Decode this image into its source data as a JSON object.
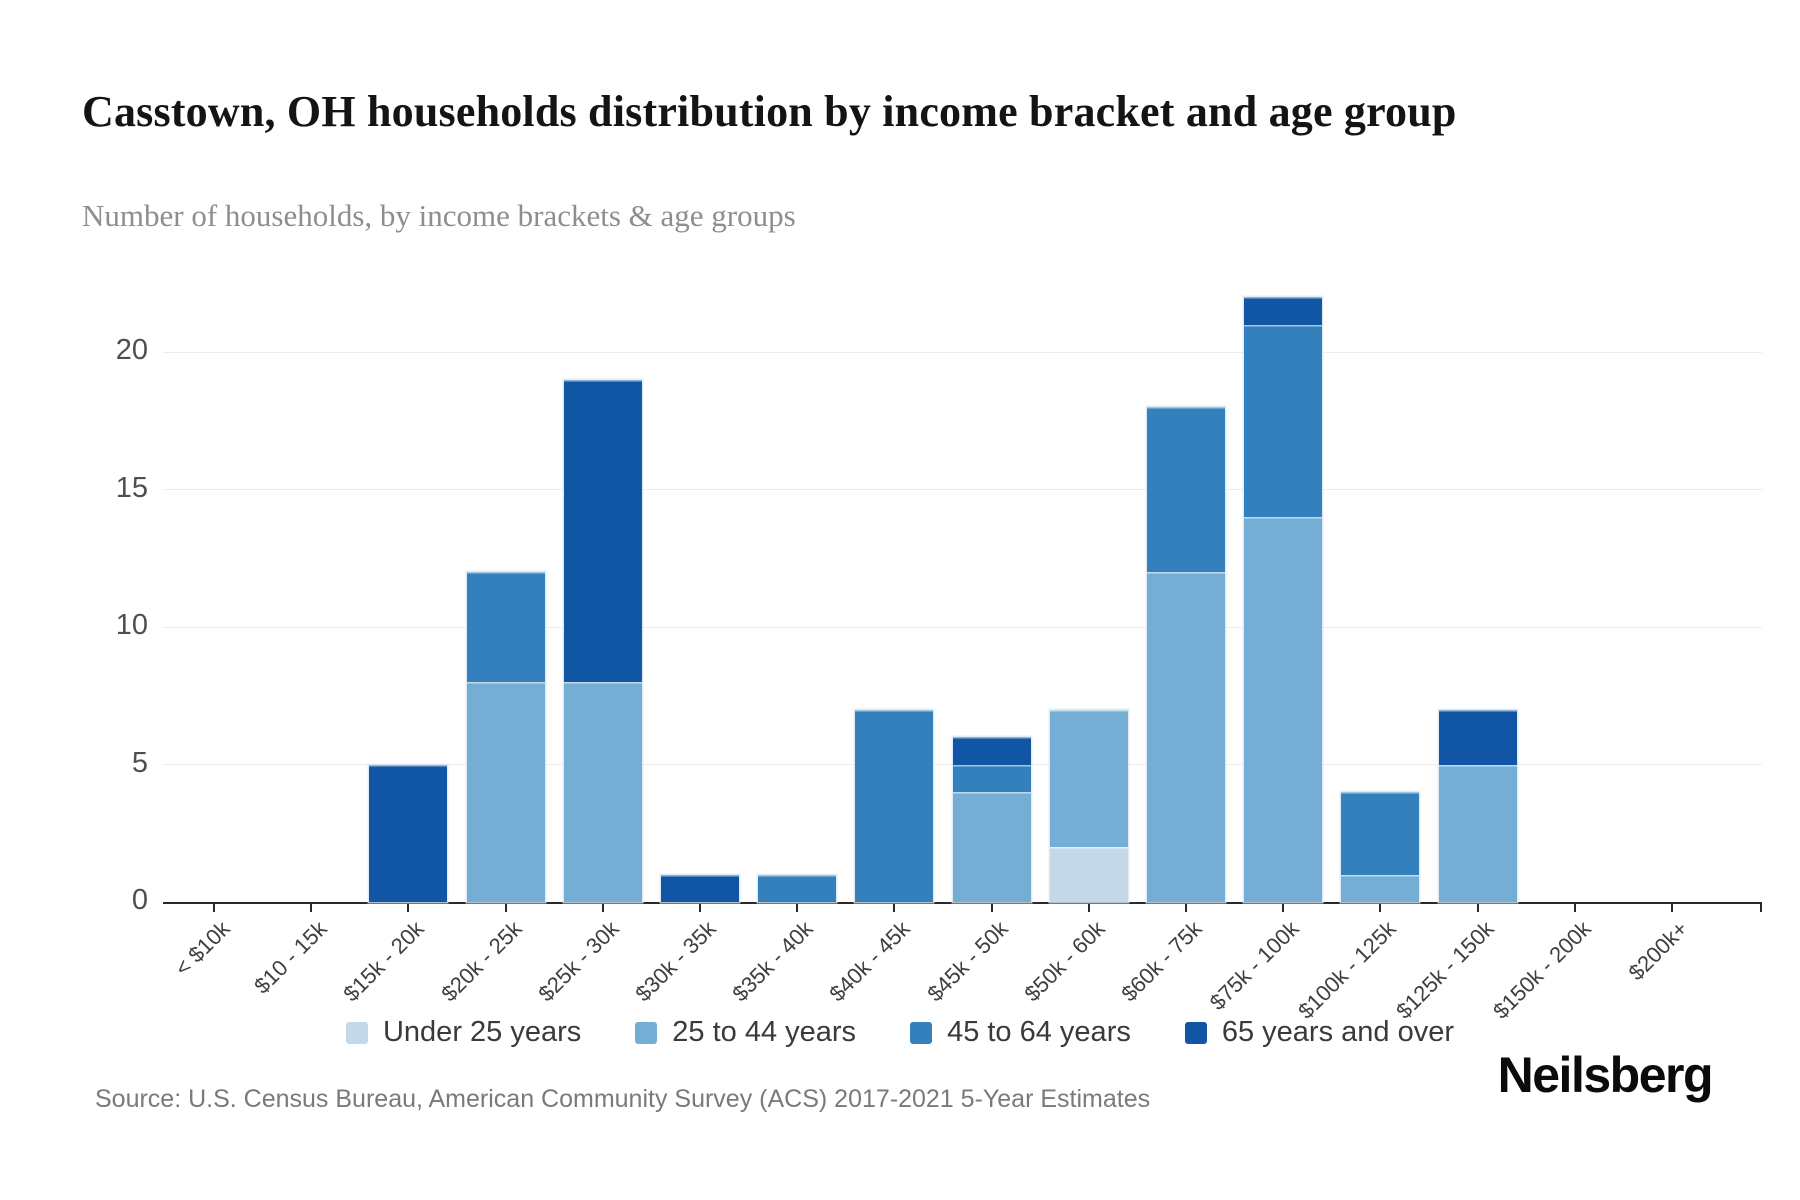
{
  "title": "Casstown, OH households distribution by income bracket and age group",
  "subtitle": "Number of households, by income brackets & age groups",
  "source": {
    "text": "Source: U.S. Census Bureau, American Community Survey (ACS) 2017-2021 5-Year Estimates"
  },
  "logo": {
    "text": "Neilsberg"
  },
  "colors": {
    "under_25": "#c3d9ea",
    "age_25_44": "#74aed4",
    "age_45_64": "#3380bd",
    "age_65_over": "#1156a5",
    "gridline": "#ececec",
    "axis": "#2a2a2a"
  },
  "chart_data": {
    "type": "bar",
    "stacked": true,
    "title": "Casstown, OH households distribution by income bracket and age group",
    "xlabel": "",
    "ylabel": "Number of households",
    "ylim": [
      0,
      22
    ],
    "yticks": [
      0,
      5,
      10,
      15,
      20
    ],
    "grid": true,
    "legend_position": "bottom",
    "categories": [
      "< $10k",
      "$10 - 15k",
      "$15k - 20k",
      "$20k - 25k",
      "$25k - 30k",
      "$30k - 35k",
      "$35k - 40k",
      "$40k - 45k",
      "$45k - 50k",
      "$50k - 60k",
      "$60k - 75k",
      "$75k - 100k",
      "$100k - 125k",
      "$125k - 150k",
      "$150k - 200k",
      "$200k+"
    ],
    "series": [
      {
        "name": "Under 25 years",
        "color": "#c3d9ea",
        "values": [
          0,
          0,
          0,
          0,
          0,
          0,
          0,
          0,
          0,
          2,
          0,
          0,
          0,
          0,
          0,
          0
        ]
      },
      {
        "name": "25 to 44 years",
        "color": "#74aed4",
        "values": [
          0,
          0,
          0,
          8,
          8,
          0,
          0,
          0,
          4,
          5,
          12,
          14,
          1,
          5,
          0,
          0
        ]
      },
      {
        "name": "45 to 64 years",
        "color": "#3380bd",
        "values": [
          0,
          0,
          0,
          4,
          0,
          0,
          1,
          7,
          1,
          0,
          6,
          7,
          3,
          0,
          0,
          0
        ]
      },
      {
        "name": "65 years and over",
        "color": "#1156a5",
        "values": [
          0,
          0,
          5,
          0,
          11,
          1,
          0,
          0,
          1,
          0,
          0,
          1,
          0,
          2,
          0,
          0
        ]
      }
    ]
  }
}
